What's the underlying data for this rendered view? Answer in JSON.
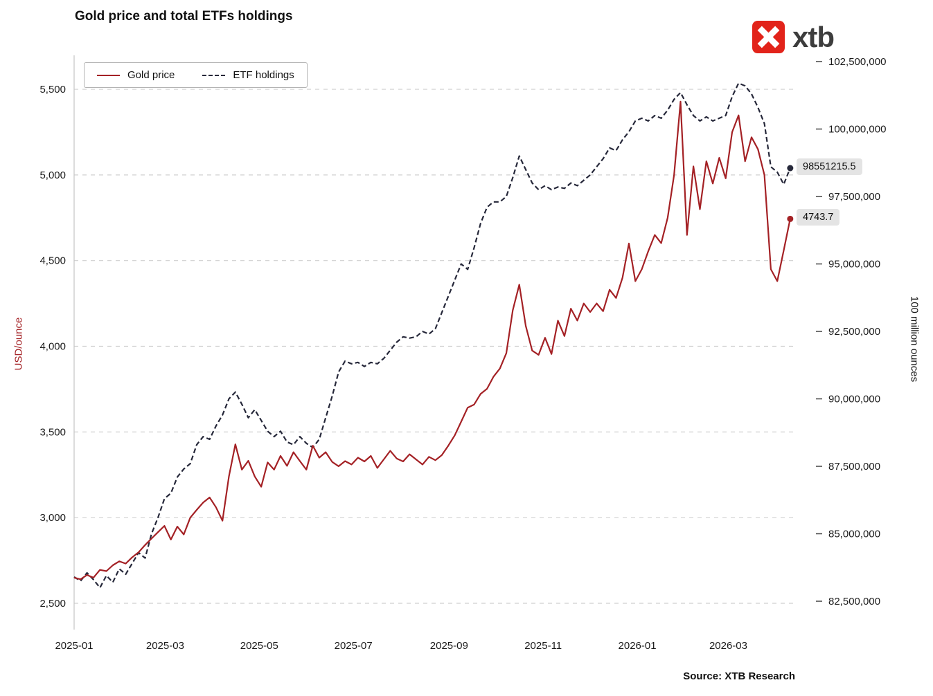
{
  "title": "Gold price and total ETFs holdings",
  "source": "Source: XTB Research",
  "logo": {
    "text": "xtb",
    "accent": "#e2231a"
  },
  "legend": {
    "items": [
      {
        "label": "Gold price"
      },
      {
        "label": "ETF holdings"
      }
    ]
  },
  "end_labels": {
    "gold": "4743.7",
    "etf": "98551215.5"
  },
  "chart_data": {
    "type": "line",
    "title": "Gold price and total ETFs holdings",
    "grid_color": "#cfcfcf",
    "x_extent": [
      0,
      0.996
    ],
    "x_ticks": [
      {
        "label": "2025-01",
        "pos": 0.0
      },
      {
        "label": "2025-03",
        "pos": 0.1266
      },
      {
        "label": "2025-05",
        "pos": 0.2575
      },
      {
        "label": "2025-07",
        "pos": 0.3884
      },
      {
        "label": "2025-09",
        "pos": 0.5215
      },
      {
        "label": "2025-11",
        "pos": 0.6524
      },
      {
        "label": "2026-01",
        "pos": 0.7833
      },
      {
        "label": "2026-03",
        "pos": 0.9099
      }
    ],
    "y_left": {
      "label": "USD/ounce",
      "color": "#a42125",
      "ticks": [
        2500,
        3000,
        3500,
        4000,
        4500,
        5000,
        5500
      ],
      "tick_labels": [
        "2,500",
        "3,000",
        "3,500",
        "4,000",
        "4,500",
        "5,000",
        "5,500"
      ],
      "range": [
        2346.6,
        5698.1
      ]
    },
    "y_right": {
      "label": "100 million ounces",
      "color": "#111111",
      "ticks": [
        82500000,
        85000000,
        87500000,
        90000000,
        92500000,
        95000000,
        97500000,
        100000000,
        102500000
      ],
      "tick_labels": [
        "82,500,000",
        "85,000,000",
        "87,500,000",
        "90,000,000",
        "92,500,000",
        "95,000,000",
        "97,500,000",
        "100,000,000",
        "102,500,000"
      ],
      "range": [
        81448719,
        102730749
      ]
    },
    "series": [
      {
        "id": "gold-price",
        "name": "Gold price",
        "axis": "left",
        "color": "#a42125",
        "dash": "",
        "end_label": "4743.7",
        "values": [
          2650,
          2640,
          2665,
          2650,
          2695,
          2688,
          2722,
          2745,
          2732,
          2768,
          2798,
          2840,
          2878,
          2915,
          2952,
          2872,
          2948,
          2902,
          3000,
          3045,
          3088,
          3118,
          3060,
          2982,
          3240,
          3428,
          3280,
          3332,
          3240,
          3180,
          3322,
          3280,
          3360,
          3302,
          3382,
          3330,
          3280,
          3420,
          3350,
          3382,
          3325,
          3300,
          3330,
          3310,
          3350,
          3328,
          3360,
          3290,
          3340,
          3390,
          3345,
          3328,
          3370,
          3340,
          3310,
          3355,
          3335,
          3365,
          3420,
          3480,
          3560,
          3642,
          3660,
          3722,
          3752,
          3822,
          3870,
          3960,
          4210,
          4360,
          4120,
          3975,
          3950,
          4050,
          3955,
          4150,
          4060,
          4220,
          4150,
          4250,
          4200,
          4250,
          4205,
          4330,
          4282,
          4400,
          4600,
          4380,
          4450,
          4555,
          4650,
          4602,
          4750,
          5000,
          5428,
          4650,
          5050,
          4800,
          5080,
          4950,
          5100,
          4980,
          5250,
          5348,
          5080,
          5220,
          5150,
          5000,
          4450,
          4380,
          4560,
          4743.7
        ]
      },
      {
        "id": "etf-holdings",
        "name": "ETF holdings",
        "axis": "right",
        "color": "#26283a",
        "dash": "7,4",
        "end_label": "98551215.5",
        "values": [
          83400000,
          83250000,
          83550000,
          83300000,
          83000000,
          83450000,
          83200000,
          83700000,
          83500000,
          83900000,
          84300000,
          84100000,
          85000000,
          85600000,
          86300000,
          86500000,
          87100000,
          87400000,
          87600000,
          88300000,
          88600000,
          88500000,
          89000000,
          89400000,
          90000000,
          90250000,
          89800000,
          89300000,
          89600000,
          89200000,
          88800000,
          88600000,
          88800000,
          88400000,
          88300000,
          88600000,
          88350000,
          88200000,
          88500000,
          89300000,
          90100000,
          91000000,
          91400000,
          91300000,
          91350000,
          91200000,
          91350000,
          91300000,
          91500000,
          91800000,
          92100000,
          92300000,
          92250000,
          92300000,
          92500000,
          92400000,
          92600000,
          93200000,
          93800000,
          94400000,
          95000000,
          94800000,
          95600000,
          96500000,
          97100000,
          97300000,
          97300000,
          97500000,
          98200000,
          99000000,
          98500000,
          98000000,
          97750000,
          97900000,
          97750000,
          97850000,
          97800000,
          98000000,
          97900000,
          98100000,
          98300000,
          98600000,
          98900000,
          99300000,
          99200000,
          99600000,
          99900000,
          100300000,
          100400000,
          100300000,
          100500000,
          100400000,
          100700000,
          101100000,
          101350000,
          100900000,
          100500000,
          100300000,
          100450000,
          100300000,
          100400000,
          100500000,
          101200000,
          101700000,
          101600000,
          101300000,
          100800000,
          100200000,
          98600000,
          98400000,
          97950000,
          98551215.5
        ]
      }
    ]
  }
}
